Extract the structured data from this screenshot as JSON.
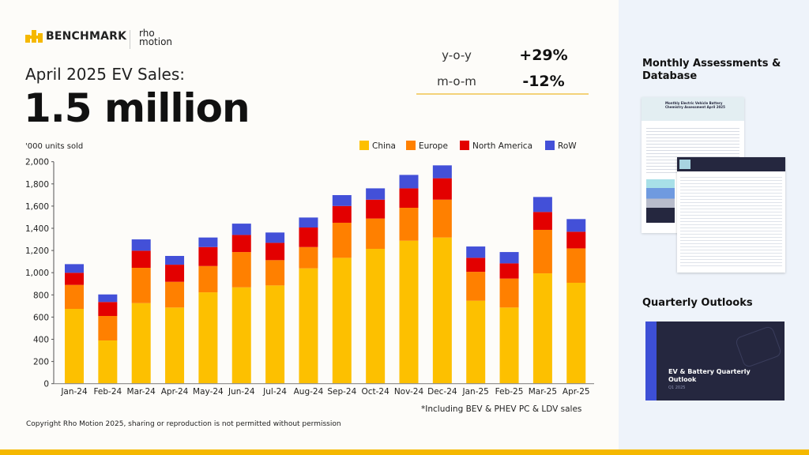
{
  "header": {
    "brand_left": "BENCHMARK",
    "brand_right": [
      "rho",
      "motion"
    ],
    "subtitle": "April 2025 EV Sales:",
    "headline": "1.5 million"
  },
  "stats": [
    {
      "label": "y-o-y",
      "value": "+29%"
    },
    {
      "label": "m-o-m",
      "value": "-12%"
    }
  ],
  "sidebar": {
    "section1": "Monthly Assessments & Database",
    "section2": "Quarterly Outlooks",
    "doc_title": "Monthly Electric Vehicle Battery Chemistry Assessment April 2025",
    "outlook_title": "EV & Battery Quarterly Outlook",
    "outlook_sub": "Q1 2025"
  },
  "footer": {
    "copyright": "Copyright Rho Motion 2025, sharing or reproduction is not permitted without permission",
    "note": "*Including BEV & PHEV PC & LDV sales"
  },
  "colors": {
    "China": "#fdc000",
    "Europe": "#ff8000",
    "North America": "#e30000",
    "RoW": "#4350d8",
    "accent": "#f5b800"
  },
  "chart_data": {
    "type": "bar",
    "stacked": true,
    "ylabel": "'000 units sold",
    "ylim": [
      0,
      2000
    ],
    "yticks": [
      "0",
      "200",
      "400",
      "600",
      "800",
      "1,000",
      "1,200",
      "1,400",
      "1,600",
      "1,800",
      "2,000"
    ],
    "legend_placement": "top-right",
    "grid": false,
    "categories": [
      "Jan-24",
      "Feb-24",
      "Mar-24",
      "Apr-24",
      "May-24",
      "Jun-24",
      "Jul-24",
      "Aug-24",
      "Sep-24",
      "Oct-24",
      "Nov-24",
      "Dec-24",
      "Jan-25",
      "Feb-25",
      "Mar-25",
      "Apr-25"
    ],
    "series": [
      {
        "name": "China",
        "values": [
          674,
          389,
          726,
          686,
          823,
          868,
          885,
          1039,
          1134,
          1215,
          1288,
          1317,
          747,
          686,
          994,
          909
        ]
      },
      {
        "name": "Europe",
        "values": [
          216,
          221,
          318,
          232,
          237,
          318,
          228,
          192,
          316,
          273,
          297,
          341,
          261,
          261,
          392,
          310
        ]
      },
      {
        "name": "North America",
        "values": [
          109,
          126,
          154,
          154,
          171,
          154,
          156,
          176,
          151,
          170,
          175,
          193,
          126,
          137,
          161,
          150
        ]
      },
      {
        "name": "RoW",
        "values": [
          78,
          68,
          102,
          79,
          86,
          102,
          93,
          90,
          98,
          102,
          121,
          116,
          102,
          102,
          135,
          114
        ]
      }
    ]
  }
}
